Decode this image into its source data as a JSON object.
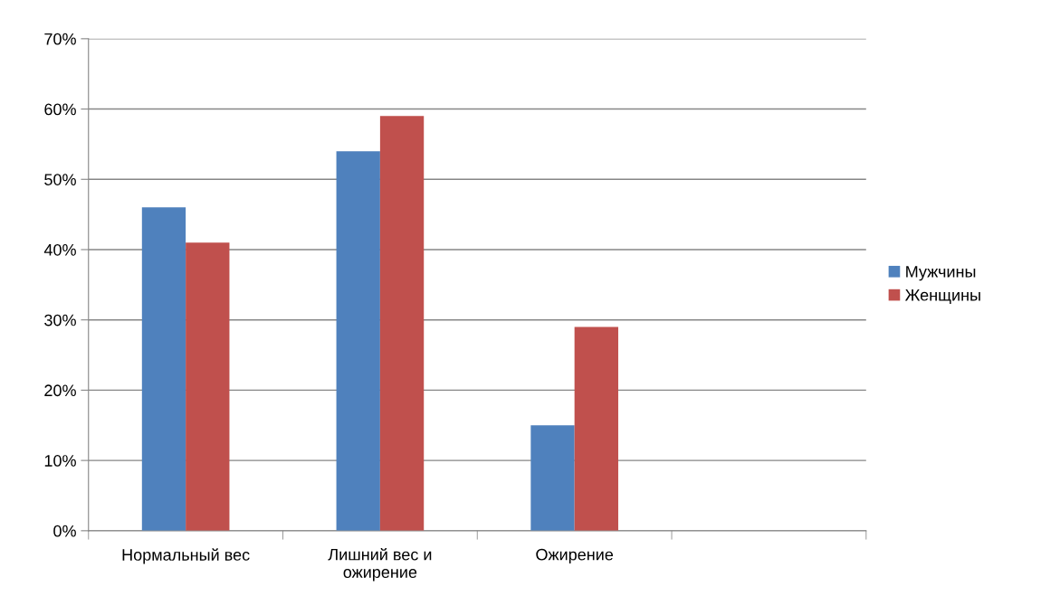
{
  "chart_data": {
    "type": "bar",
    "categories": [
      "Нормальный вес",
      "Лишний вес и\nожирение",
      "Ожирение",
      null
    ],
    "series": [
      {
        "name": "Мужчины",
        "color": "#4f81bd",
        "values": [
          46,
          54,
          15,
          null
        ]
      },
      {
        "name": "Женщины",
        "color": "#c0504d",
        "values": [
          41,
          59,
          29,
          null
        ]
      }
    ],
    "ylim": [
      0,
      70
    ],
    "yticks": [
      {
        "value": 0,
        "label": "0%"
      },
      {
        "value": 10,
        "label": "10%"
      },
      {
        "value": 20,
        "label": "20%"
      },
      {
        "value": 30,
        "label": "30%"
      },
      {
        "value": 40,
        "label": "40%"
      },
      {
        "value": 50,
        "label": "50%"
      },
      {
        "value": 60,
        "label": "60%"
      },
      {
        "value": 70,
        "label": "70%"
      }
    ],
    "grid": "y",
    "legend": "right"
  }
}
